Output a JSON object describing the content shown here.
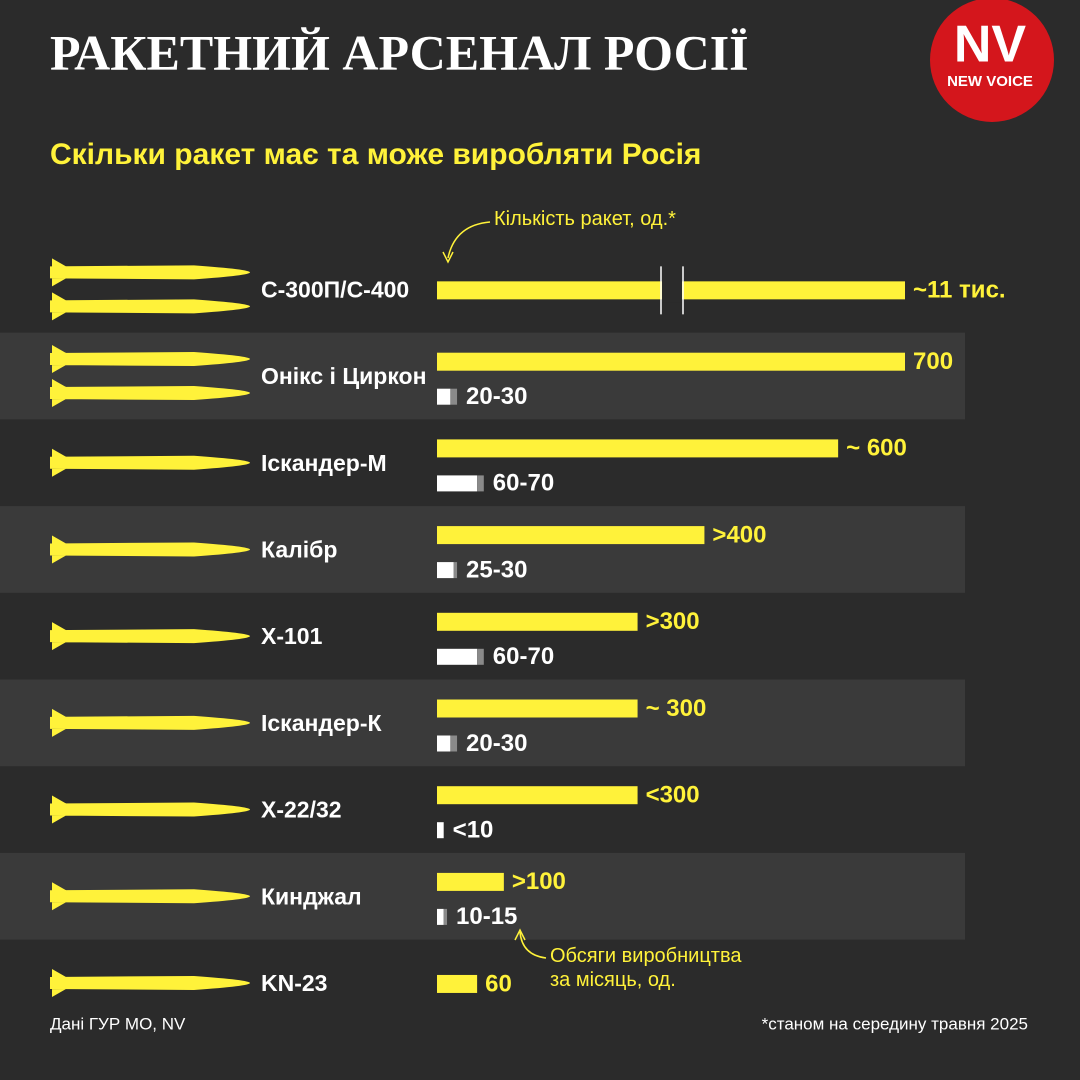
{
  "chart_data": {
    "type": "bar",
    "orientation": "horizontal",
    "title": "РАКЕТНИЙ АРСЕНАЛ РОСІЇ",
    "subtitle": "Скільки ракет має та може виробляти Росія",
    "source": "Дані ГУР МО, NV",
    "footnote": "*станом на середину травня 2025",
    "categories": [
      "С-300П/С-400",
      "Онікс і Циркон",
      "Іскандер-М",
      "Калібр",
      "Х-101",
      "Іскандер-К",
      "Х-22/32",
      "Кинджал",
      "KN-23"
    ],
    "series": [
      {
        "name": "Кількість ракет, од.*",
        "color": "#fff23a",
        "values": [
          11000,
          700,
          600,
          400,
          300,
          300,
          300,
          100,
          60
        ],
        "value_labels": [
          "~11 тис.",
          "700",
          "~ 600",
          ">400",
          ">300",
          "~ 300",
          "<300",
          ">100",
          "60"
        ]
      },
      {
        "name": "Обсяги виробництва\nза місяць, од.",
        "color": "#ffffff",
        "values": [
          null,
          30,
          70,
          30,
          70,
          30,
          10,
          15,
          null
        ],
        "low": [
          null,
          20,
          60,
          25,
          60,
          20,
          null,
          10,
          null
        ],
        "value_labels": [
          null,
          "20-30",
          "60-70",
          "25-30",
          "60-70",
          "20-30",
          "<10",
          "10-15",
          null
        ]
      }
    ],
    "xlim": [
      0,
      700
    ],
    "axis_break": true
  },
  "logo": {
    "text": "NV",
    "subtext": "NEW VOICE"
  }
}
